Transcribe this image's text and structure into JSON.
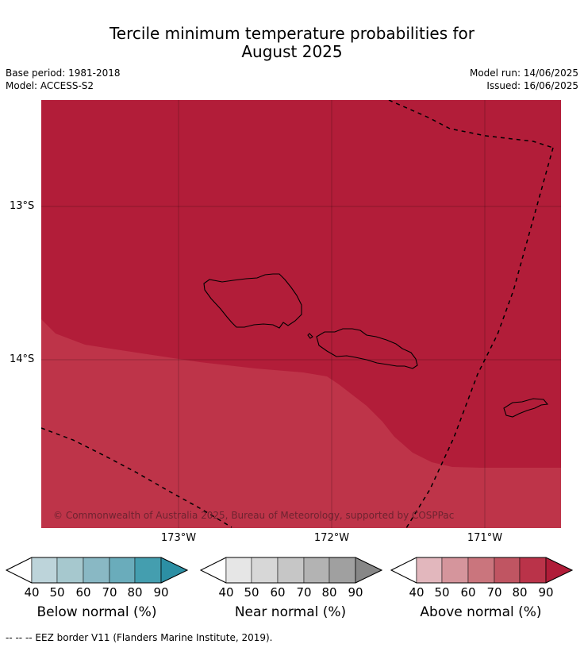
{
  "title": "Tercile minimum temperature probabilities for",
  "title_line2": "August 2025",
  "meta": {
    "base_period": "Base period: 1981-2018",
    "model": "Model: ACCESS-S2",
    "model_run": "Model run: 14/06/2025",
    "issued": "Issued: 16/06/2025"
  },
  "map": {
    "lat_labels": [
      "13°S",
      "14°S"
    ],
    "lon_labels": [
      "173°W",
      "172°W",
      "171°W"
    ],
    "copyright": "© Commonwealth of Australia 2025, Bureau of Meteorology, supported by COSPPac",
    "colors": {
      "above_90": "#b21d39",
      "above_80": "#be3449",
      "coast": "#000000",
      "eez": "#000000"
    }
  },
  "colorbars": [
    {
      "label": "Below normal (%)",
      "ticks": [
        "40",
        "50",
        "60",
        "70",
        "80",
        "90"
      ],
      "colors": [
        "#ffffff",
        "#bdd4da",
        "#a6c8ce",
        "#89b8c4",
        "#6aacbb",
        "#449eaf",
        "#2c8fa4"
      ]
    },
    {
      "label": "Near normal (%)",
      "ticks": [
        "40",
        "50",
        "60",
        "70",
        "80",
        "90"
      ],
      "colors": [
        "#ffffff",
        "#e6e6e6",
        "#d7d7d7",
        "#c6c6c6",
        "#b3b3b3",
        "#a0a0a0",
        "#878787"
      ]
    },
    {
      "label": "Above normal (%)",
      "ticks": [
        "40",
        "50",
        "60",
        "70",
        "80",
        "90"
      ],
      "colors": [
        "#ffffff",
        "#e2b7bd",
        "#d5959c",
        "#ca757d",
        "#c05562",
        "#ba3349",
        "#b01c38"
      ]
    }
  ],
  "footnote": "--  --  -- EEZ border V11 (Flanders Marine Institute, 2019)."
}
